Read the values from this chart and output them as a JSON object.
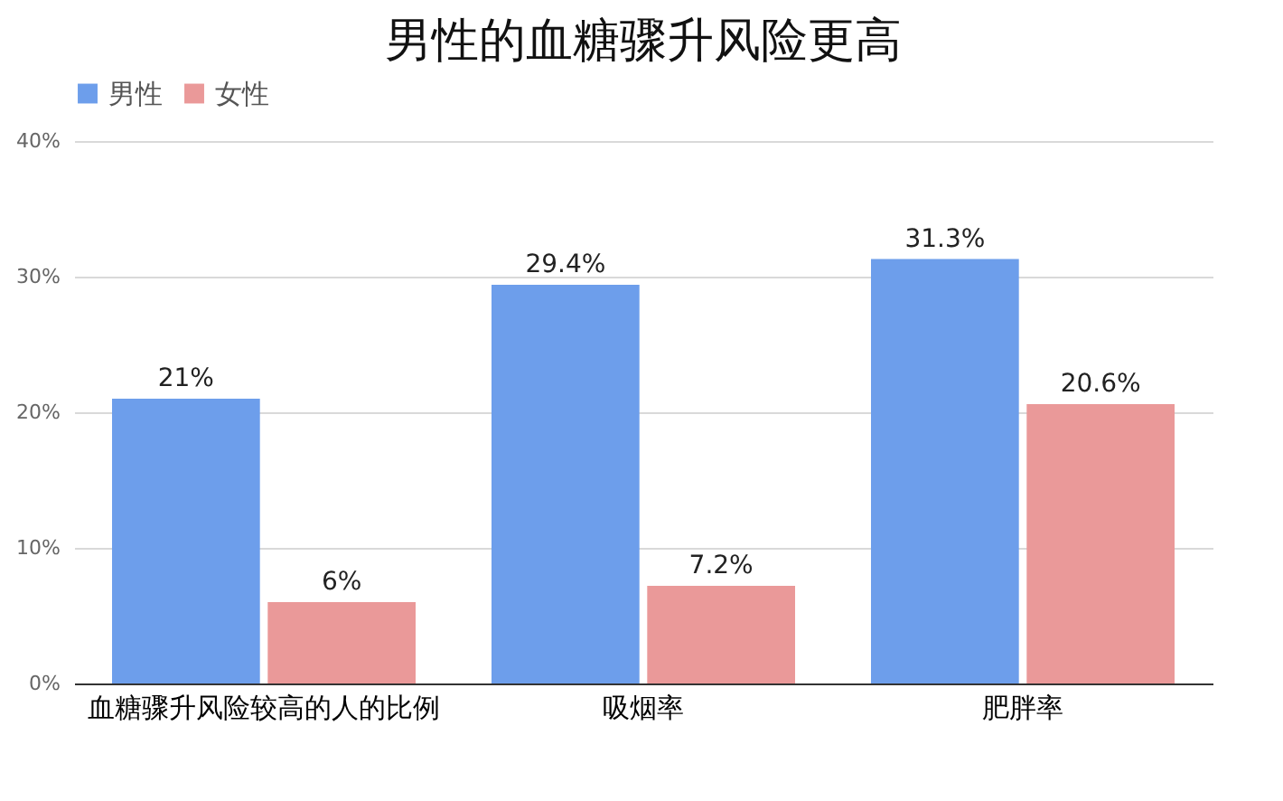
{
  "chart_data": {
    "type": "bar",
    "title": "男性的血糖骤升风险更高",
    "categories": [
      "血糖骤升风险较高的人的比例",
      "吸烟率",
      "肥胖率"
    ],
    "series": [
      {
        "name": "男性",
        "color": "#6d9eeb",
        "values": [
          21,
          29.4,
          31.3
        ],
        "value_labels": [
          "21%",
          "29.4%",
          "31.3%"
        ]
      },
      {
        "name": "女性",
        "color": "#ea9999",
        "values": [
          6,
          7.2,
          20.6
        ],
        "value_labels": [
          "6%",
          "7.2%",
          "20.6%"
        ]
      }
    ],
    "ylim": [
      0,
      40
    ],
    "yticks": [
      {
        "value": 0,
        "label": "0%"
      },
      {
        "value": 10,
        "label": "10%"
      },
      {
        "value": 20,
        "label": "20%"
      },
      {
        "value": 30,
        "label": "30%"
      },
      {
        "value": 40,
        "label": "40%"
      }
    ],
    "grid": "y",
    "legend": "top"
  }
}
